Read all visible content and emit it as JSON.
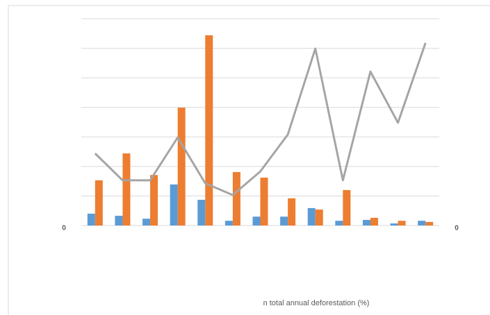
{
  "chart_data": {
    "type": "bar-line",
    "x_axis_title": "n total annual deforestation (%)",
    "categories": [
      null,
      null,
      null,
      null,
      null,
      null,
      null,
      null,
      null,
      null,
      null,
      null,
      null
    ],
    "series": [
      {
        "type": "bar",
        "color": "#5b9bd5",
        "values": [
          0.4,
          0.33,
          0.23,
          1.39,
          0.87,
          0.16,
          0.3,
          0.3,
          0.59,
          0.16,
          0.19,
          0.07,
          0.16
        ]
      },
      {
        "type": "bar",
        "color": "#ed7d31",
        "values": [
          1.53,
          2.44,
          1.71,
          3.99,
          6.44,
          1.81,
          1.62,
          0.92,
          0.54,
          1.2,
          0.26,
          0.16,
          0.12
        ]
      },
      {
        "type": "line",
        "color": "#a5a5a5",
        "axis": "y2",
        "values": [
          2.44,
          1.53,
          1.53,
          2.98,
          1.43,
          1.03,
          1.83,
          3.08,
          5.99,
          1.53,
          5.21,
          3.48,
          6.18
        ]
      }
    ],
    "ylim": [
      0,
      7
    ],
    "yticks": [
      0
    ],
    "y2lim": [
      0,
      7
    ],
    "y2ticks": [
      0
    ],
    "ygrid": [
      1,
      2,
      3,
      4,
      5,
      6,
      7
    ],
    "grid": true
  }
}
